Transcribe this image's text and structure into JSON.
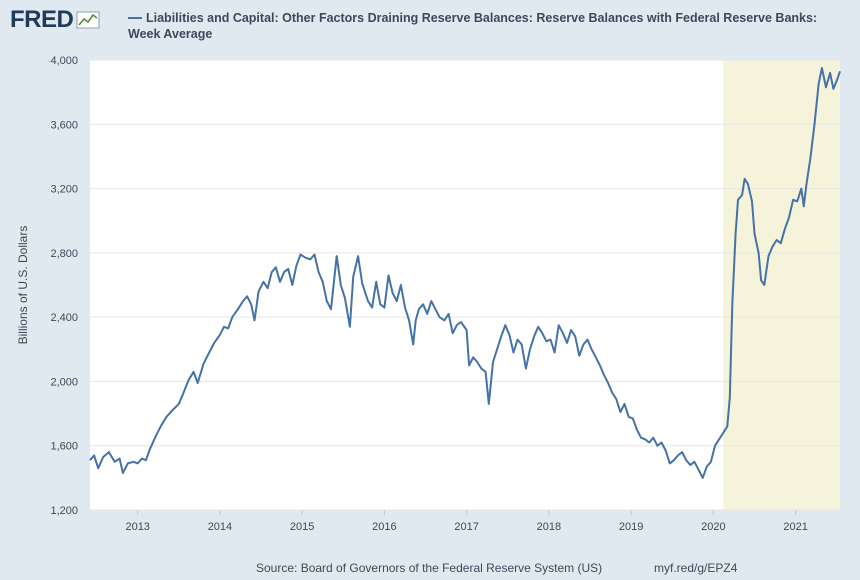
{
  "header": {
    "logo_text": "FRED",
    "legend_label": "Liabilities and Capital: Other Factors Draining Reserve Balances: Reserve Balances with Federal Reserve Banks: Week Average"
  },
  "footer": {
    "source": "Source: Board of Governors of the Federal Reserve System (US)",
    "link": "myf.red/g/EPZ4"
  },
  "colors": {
    "line": "#4572a7",
    "recession": "#f5f3d9",
    "background": "#e1e9f0"
  },
  "chart_data": {
    "type": "line",
    "title": "Liabilities and Capital: Other Factors Draining Reserve Balances: Reserve Balances with Federal Reserve Banks: Week Average",
    "xlabel": "",
    "ylabel": "Billions of U.S. Dollars",
    "ylim": [
      1200,
      4000
    ],
    "xlim": [
      2012.42,
      2021.54
    ],
    "y_ticks": [
      1200,
      1600,
      2000,
      2400,
      2800,
      3200,
      3600,
      4000
    ],
    "y_tick_labels": [
      "1,200",
      "1,600",
      "2,000",
      "2,400",
      "2,800",
      "3,200",
      "3,600",
      "4,000"
    ],
    "x_ticks": [
      2013,
      2014,
      2015,
      2016,
      2017,
      2018,
      2019,
      2020,
      2021
    ],
    "x_tick_labels": [
      "2013",
      "2014",
      "2015",
      "2016",
      "2017",
      "2018",
      "2019",
      "2020",
      "2021"
    ],
    "grid": true,
    "recession_shading": [
      [
        2020.12,
        2021.54
      ]
    ],
    "series": [
      {
        "name": "Reserve Balances with Federal Reserve Banks: Week Average",
        "points": [
          [
            2012.42,
            1510
          ],
          [
            2012.47,
            1540
          ],
          [
            2012.52,
            1460
          ],
          [
            2012.58,
            1530
          ],
          [
            2012.65,
            1560
          ],
          [
            2012.72,
            1500
          ],
          [
            2012.78,
            1520
          ],
          [
            2012.82,
            1430
          ],
          [
            2012.88,
            1490
          ],
          [
            2012.95,
            1500
          ],
          [
            2013.0,
            1490
          ],
          [
            2013.05,
            1520
          ],
          [
            2013.1,
            1510
          ],
          [
            2013.15,
            1580
          ],
          [
            2013.22,
            1660
          ],
          [
            2013.28,
            1720
          ],
          [
            2013.35,
            1780
          ],
          [
            2013.42,
            1820
          ],
          [
            2013.5,
            1860
          ],
          [
            2013.55,
            1920
          ],
          [
            2013.62,
            2010
          ],
          [
            2013.68,
            2060
          ],
          [
            2013.73,
            1990
          ],
          [
            2013.8,
            2110
          ],
          [
            2013.87,
            2180
          ],
          [
            2013.93,
            2240
          ],
          [
            2014.0,
            2290
          ],
          [
            2014.05,
            2340
          ],
          [
            2014.1,
            2330
          ],
          [
            2014.15,
            2400
          ],
          [
            2014.22,
            2450
          ],
          [
            2014.28,
            2500
          ],
          [
            2014.33,
            2530
          ],
          [
            2014.38,
            2480
          ],
          [
            2014.42,
            2380
          ],
          [
            2014.47,
            2560
          ],
          [
            2014.53,
            2620
          ],
          [
            2014.58,
            2580
          ],
          [
            2014.63,
            2680
          ],
          [
            2014.68,
            2710
          ],
          [
            2014.73,
            2620
          ],
          [
            2014.78,
            2680
          ],
          [
            2014.83,
            2700
          ],
          [
            2014.88,
            2600
          ],
          [
            2014.93,
            2720
          ],
          [
            2014.98,
            2790
          ],
          [
            2015.04,
            2770
          ],
          [
            2015.1,
            2760
          ],
          [
            2015.15,
            2790
          ],
          [
            2015.2,
            2680
          ],
          [
            2015.25,
            2620
          ],
          [
            2015.3,
            2500
          ],
          [
            2015.35,
            2450
          ],
          [
            2015.42,
            2780
          ],
          [
            2015.47,
            2600
          ],
          [
            2015.52,
            2520
          ],
          [
            2015.58,
            2340
          ],
          [
            2015.62,
            2650
          ],
          [
            2015.68,
            2780
          ],
          [
            2015.73,
            2610
          ],
          [
            2015.8,
            2500
          ],
          [
            2015.85,
            2460
          ],
          [
            2015.9,
            2620
          ],
          [
            2015.95,
            2480
          ],
          [
            2016.0,
            2460
          ],
          [
            2016.05,
            2660
          ],
          [
            2016.1,
            2550
          ],
          [
            2016.15,
            2500
          ],
          [
            2016.2,
            2600
          ],
          [
            2016.25,
            2460
          ],
          [
            2016.3,
            2380
          ],
          [
            2016.35,
            2230
          ],
          [
            2016.38,
            2380
          ],
          [
            2016.42,
            2450
          ],
          [
            2016.47,
            2480
          ],
          [
            2016.52,
            2420
          ],
          [
            2016.57,
            2500
          ],
          [
            2016.62,
            2450
          ],
          [
            2016.67,
            2400
          ],
          [
            2016.73,
            2380
          ],
          [
            2016.78,
            2420
          ],
          [
            2016.83,
            2300
          ],
          [
            2016.88,
            2350
          ],
          [
            2016.93,
            2370
          ],
          [
            2017.0,
            2320
          ],
          [
            2017.03,
            2100
          ],
          [
            2017.08,
            2150
          ],
          [
            2017.13,
            2120
          ],
          [
            2017.18,
            2080
          ],
          [
            2017.23,
            2060
          ],
          [
            2017.27,
            1860
          ],
          [
            2017.32,
            2120
          ],
          [
            2017.37,
            2200
          ],
          [
            2017.42,
            2280
          ],
          [
            2017.47,
            2350
          ],
          [
            2017.52,
            2290
          ],
          [
            2017.57,
            2180
          ],
          [
            2017.62,
            2260
          ],
          [
            2017.67,
            2230
          ],
          [
            2017.72,
            2080
          ],
          [
            2017.77,
            2200
          ],
          [
            2017.82,
            2280
          ],
          [
            2017.87,
            2340
          ],
          [
            2017.92,
            2300
          ],
          [
            2017.97,
            2250
          ],
          [
            2018.02,
            2260
          ],
          [
            2018.07,
            2180
          ],
          [
            2018.12,
            2350
          ],
          [
            2018.17,
            2300
          ],
          [
            2018.22,
            2240
          ],
          [
            2018.27,
            2320
          ],
          [
            2018.32,
            2280
          ],
          [
            2018.37,
            2160
          ],
          [
            2018.42,
            2230
          ],
          [
            2018.47,
            2260
          ],
          [
            2018.52,
            2200
          ],
          [
            2018.57,
            2150
          ],
          [
            2018.62,
            2100
          ],
          [
            2018.67,
            2040
          ],
          [
            2018.72,
            1990
          ],
          [
            2018.77,
            1930
          ],
          [
            2018.82,
            1890
          ],
          [
            2018.87,
            1810
          ],
          [
            2018.92,
            1860
          ],
          [
            2018.97,
            1780
          ],
          [
            2019.02,
            1770
          ],
          [
            2019.07,
            1700
          ],
          [
            2019.12,
            1650
          ],
          [
            2019.17,
            1640
          ],
          [
            2019.22,
            1620
          ],
          [
            2019.27,
            1650
          ],
          [
            2019.32,
            1600
          ],
          [
            2019.37,
            1620
          ],
          [
            2019.42,
            1570
          ],
          [
            2019.47,
            1490
          ],
          [
            2019.52,
            1510
          ],
          [
            2019.57,
            1540
          ],
          [
            2019.62,
            1560
          ],
          [
            2019.67,
            1510
          ],
          [
            2019.72,
            1480
          ],
          [
            2019.77,
            1500
          ],
          [
            2019.82,
            1450
          ],
          [
            2019.87,
            1400
          ],
          [
            2019.92,
            1470
          ],
          [
            2019.97,
            1500
          ],
          [
            2020.02,
            1600
          ],
          [
            2020.07,
            1640
          ],
          [
            2020.12,
            1680
          ],
          [
            2020.17,
            1720
          ],
          [
            2020.2,
            1900
          ],
          [
            2020.23,
            2480
          ],
          [
            2020.27,
            2920
          ],
          [
            2020.3,
            3130
          ],
          [
            2020.35,
            3160
          ],
          [
            2020.38,
            3260
          ],
          [
            2020.42,
            3230
          ],
          [
            2020.47,
            3120
          ],
          [
            2020.5,
            2920
          ],
          [
            2020.55,
            2800
          ],
          [
            2020.58,
            2630
          ],
          [
            2020.62,
            2600
          ],
          [
            2020.67,
            2780
          ],
          [
            2020.72,
            2840
          ],
          [
            2020.77,
            2880
          ],
          [
            2020.82,
            2860
          ],
          [
            2020.87,
            2950
          ],
          [
            2020.92,
            3020
          ],
          [
            2020.97,
            3130
          ],
          [
            2021.02,
            3120
          ],
          [
            2021.07,
            3200
          ],
          [
            2021.1,
            3090
          ],
          [
            2021.13,
            3220
          ],
          [
            2021.18,
            3390
          ],
          [
            2021.23,
            3600
          ],
          [
            2021.28,
            3850
          ],
          [
            2021.32,
            3950
          ],
          [
            2021.37,
            3830
          ],
          [
            2021.42,
            3920
          ],
          [
            2021.46,
            3820
          ],
          [
            2021.5,
            3870
          ],
          [
            2021.54,
            3930
          ]
        ]
      }
    ]
  }
}
